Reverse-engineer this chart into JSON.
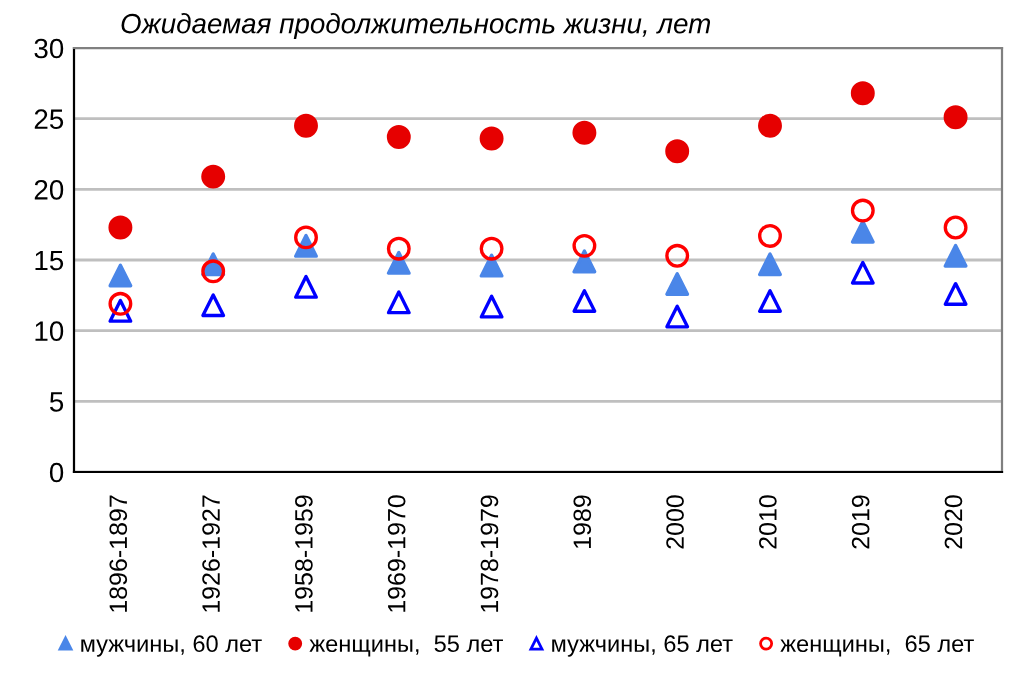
{
  "chart_data": {
    "type": "scatter",
    "title": "Ожидаемая продолжительность жизни, лет",
    "categories": [
      "1896-1897",
      "1926-1927",
      "1958-1959",
      "1969-1970",
      "1978-1979",
      "1989",
      "2000",
      "2010",
      "2019",
      "2020"
    ],
    "series": [
      {
        "name": "мужчины, 60 лет",
        "color": "#4a86e8",
        "marker": "triangle",
        "values": [
          13.9,
          14.7,
          16.0,
          14.8,
          14.6,
          14.9,
          13.3,
          14.7,
          17.0,
          15.3
        ]
      },
      {
        "name": "женщины,  55 лет",
        "color": "#e60000",
        "marker": "circle",
        "values": [
          17.3,
          20.9,
          24.5,
          23.7,
          23.6,
          24.0,
          22.7,
          24.5,
          26.8,
          25.1
        ]
      },
      {
        "name": "мужчины, 65 лет",
        "color": "#0000ff",
        "marker": "triangle",
        "values": [
          11.4,
          11.8,
          13.1,
          12.0,
          11.7,
          12.1,
          11.0,
          12.1,
          14.1,
          12.6
        ]
      },
      {
        "name": "женщины,  65 лет",
        "color": "#ff0000",
        "marker": "circle",
        "values": [
          11.9,
          14.2,
          16.6,
          15.8,
          15.8,
          16.0,
          15.3,
          16.7,
          18.5,
          17.3
        ]
      }
    ],
    "ylim": [
      0,
      30
    ],
    "yticks": [
      0,
      5,
      10,
      15,
      20,
      25,
      30
    ],
    "grid": "y",
    "legend": "bottom"
  }
}
